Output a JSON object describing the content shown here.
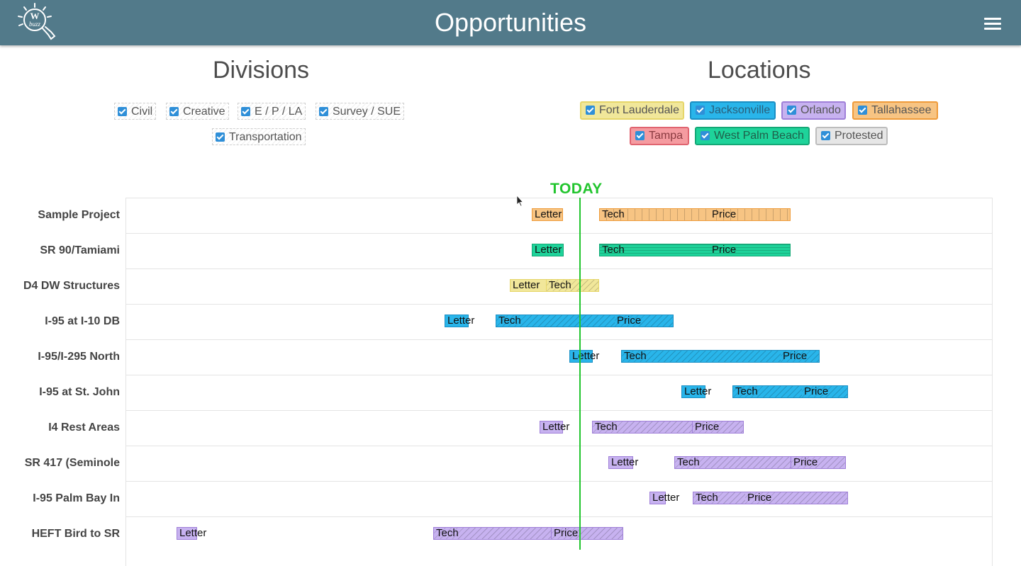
{
  "header": {
    "title": "Opportunities",
    "logo_text": "W buzz",
    "menu_icon": "hamburger-menu-icon"
  },
  "divisions": {
    "title": "Divisions",
    "items": [
      {
        "label": "Civil",
        "checked": true
      },
      {
        "label": "Creative",
        "checked": true
      },
      {
        "label": "E / P / LA",
        "checked": true
      },
      {
        "label": "Survey / SUE",
        "checked": true
      },
      {
        "label": "Transportation",
        "checked": true
      }
    ]
  },
  "locations": {
    "title": "Locations",
    "items": [
      {
        "label": "Fort Lauderdale",
        "checked": true,
        "color": "#f1e79a",
        "border": "#e6d66a",
        "text": "#555555"
      },
      {
        "label": "Jacksonville",
        "checked": true,
        "color": "#29b5ea",
        "border": "#1a8fc4",
        "text": "#2a5f7a"
      },
      {
        "label": "Orlando",
        "checked": true,
        "color": "#c7b2f0",
        "border": "#9f7fd8",
        "text": "#555555"
      },
      {
        "label": "Tallahassee",
        "checked": true,
        "color": "#f7c483",
        "border": "#ef9b3a",
        "text": "#555555"
      },
      {
        "label": "Tampa",
        "checked": true,
        "color": "#f59ba0",
        "border": "#e06470",
        "text": "#8a3a40"
      },
      {
        "label": "West Palm Beach",
        "checked": true,
        "color": "#1ed39a",
        "border": "#14a876",
        "text": "#1f5f4a"
      },
      {
        "label": "Protested",
        "checked": true,
        "color": "#e6e6e6",
        "border": "#bdbdbd",
        "text": "#555555"
      }
    ]
  },
  "timeline": {
    "today_label": "TODAY",
    "projects": [
      {
        "name": "Sample Project",
        "location": "Tallahassee",
        "pattern": "vlines",
        "segments": [
          {
            "label": "Letter"
          },
          {
            "label": "Tech"
          },
          {
            "label": "Price"
          }
        ]
      },
      {
        "name": "SR 90/Tamiami",
        "location": "West Palm Beach",
        "pattern": "hlines",
        "segments": [
          {
            "label": "Letter"
          },
          {
            "label": "Tech"
          },
          {
            "label": "Price"
          }
        ]
      },
      {
        "name": "D4 DW Structures",
        "location": "Fort Lauderdale",
        "pattern": "hatch",
        "segments": [
          {
            "label": "Letter"
          },
          {
            "label": "Tech"
          }
        ]
      },
      {
        "name": "I-95 at I-10 DB",
        "location": "Jacksonville",
        "pattern": "hatch",
        "segments": [
          {
            "label": "Letter"
          },
          {
            "label": "Tech"
          },
          {
            "label": "Price"
          }
        ]
      },
      {
        "name": "I-95/I-295 North",
        "location": "Jacksonville",
        "pattern": "hatch",
        "segments": [
          {
            "label": "Letter"
          },
          {
            "label": "Tech"
          },
          {
            "label": "Price"
          }
        ]
      },
      {
        "name": "I-95 at St. John",
        "location": "Jacksonville",
        "pattern": "hatch",
        "segments": [
          {
            "label": "Letter"
          },
          {
            "label": "Tech"
          },
          {
            "label": "Price"
          }
        ]
      },
      {
        "name": "I4 Rest Areas",
        "location": "Orlando",
        "pattern": "hatch",
        "segments": [
          {
            "label": "Letter"
          },
          {
            "label": "Tech"
          },
          {
            "label": "Price"
          }
        ]
      },
      {
        "name": "SR 417 (Seminole",
        "location": "Orlando",
        "pattern": "hatch",
        "segments": [
          {
            "label": "Letter"
          },
          {
            "label": "Tech"
          },
          {
            "label": "Price"
          }
        ]
      },
      {
        "name": "I-95 Palm Bay In",
        "location": "Orlando",
        "pattern": "hatch",
        "segments": [
          {
            "label": "Letter"
          },
          {
            "label": "Tech"
          },
          {
            "label": "Price"
          }
        ]
      },
      {
        "name": "HEFT Bird to SR",
        "location": "Orlando",
        "pattern": "hatch",
        "segments": [
          {
            "label": "Letter"
          },
          {
            "label": "Tech"
          },
          {
            "label": "Price"
          }
        ]
      }
    ]
  }
}
